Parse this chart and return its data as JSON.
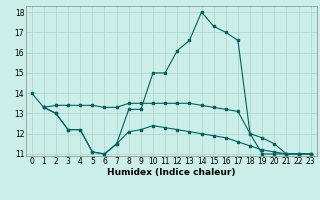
{
  "xlabel": "Humidex (Indice chaleur)",
  "bg_color": "#cceee8",
  "grid_color": "#aad4ce",
  "line_color": "#006060",
  "xmin": 0,
  "xmax": 23,
  "ymin": 11,
  "ymax": 18,
  "line1_x": [
    0,
    1,
    2,
    3,
    4,
    5,
    6,
    7,
    8,
    9,
    10,
    11,
    12,
    13,
    14,
    15,
    16,
    17,
    18,
    19,
    20,
    21,
    22,
    23
  ],
  "line1_y": [
    14.0,
    13.3,
    13.0,
    12.2,
    12.2,
    11.1,
    11.0,
    11.5,
    13.2,
    13.2,
    15.0,
    15.0,
    16.1,
    16.6,
    18.0,
    17.3,
    17.0,
    16.6,
    12.0,
    11.0,
    11.0,
    11.0,
    11.0,
    11.0
  ],
  "line2_x": [
    1,
    2,
    3,
    4,
    5,
    6,
    7,
    8,
    9,
    10,
    11,
    12,
    13,
    14,
    15,
    16,
    17,
    18,
    19,
    20,
    21,
    22,
    23
  ],
  "line2_y": [
    13.3,
    13.4,
    13.4,
    13.4,
    13.4,
    13.3,
    13.3,
    13.5,
    13.5,
    13.5,
    13.5,
    13.5,
    13.5,
    13.4,
    13.3,
    13.2,
    13.1,
    12.0,
    11.8,
    11.5,
    11.0,
    11.0,
    11.0
  ],
  "line3_x": [
    1,
    2,
    3,
    4,
    5,
    6,
    7,
    8,
    9,
    10,
    11,
    12,
    13,
    14,
    15,
    16,
    17,
    18,
    19,
    20,
    21,
    22,
    23
  ],
  "line3_y": [
    13.3,
    13.0,
    12.2,
    12.2,
    11.1,
    11.0,
    11.5,
    12.1,
    12.2,
    12.4,
    12.3,
    12.2,
    12.1,
    12.0,
    11.9,
    11.8,
    11.6,
    11.4,
    11.2,
    11.1,
    11.0,
    11.0,
    11.0
  ]
}
